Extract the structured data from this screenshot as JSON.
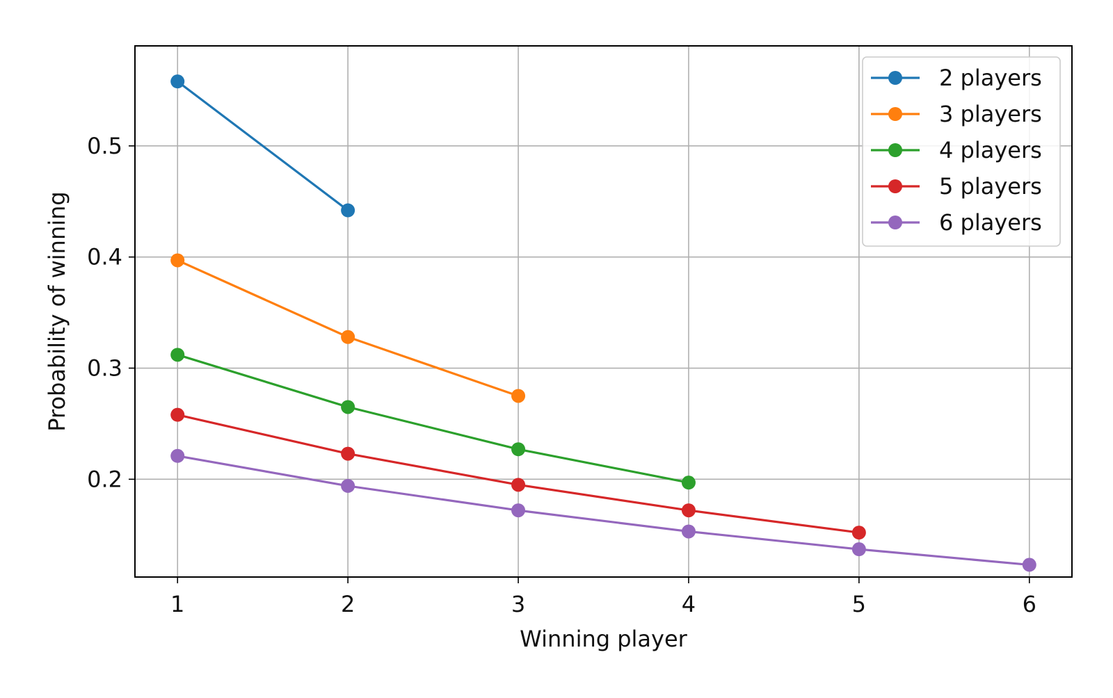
{
  "chart_data": {
    "type": "line",
    "title": "",
    "xlabel": "Winning player",
    "ylabel": "Probability of winning",
    "xlim": [
      0.75,
      6.25
    ],
    "ylim": [
      0.112,
      0.59
    ],
    "xticks": [
      1,
      2,
      3,
      4,
      5,
      6
    ],
    "yticks": [
      0.2,
      0.3,
      0.4,
      0.5
    ],
    "ytick_labels": [
      "0.2",
      "0.3",
      "0.4",
      "0.5"
    ],
    "grid": true,
    "legend_position": "top-right",
    "series": [
      {
        "name": "2 players",
        "color": "#1f77b4",
        "x": [
          1,
          2
        ],
        "values": [
          0.558,
          0.442
        ]
      },
      {
        "name": "3 players",
        "color": "#ff7f0e",
        "x": [
          1,
          2,
          3
        ],
        "values": [
          0.397,
          0.328,
          0.275
        ]
      },
      {
        "name": "4 players",
        "color": "#2ca02c",
        "x": [
          1,
          2,
          3,
          4
        ],
        "values": [
          0.312,
          0.265,
          0.227,
          0.197
        ]
      },
      {
        "name": "5 players",
        "color": "#d62728",
        "x": [
          1,
          2,
          3,
          4,
          5
        ],
        "values": [
          0.258,
          0.223,
          0.195,
          0.172,
          0.152
        ]
      },
      {
        "name": "6 players",
        "color": "#9467bd",
        "x": [
          1,
          2,
          3,
          4,
          5,
          6
        ],
        "values": [
          0.221,
          0.194,
          0.172,
          0.153,
          0.137,
          0.123
        ]
      }
    ]
  }
}
